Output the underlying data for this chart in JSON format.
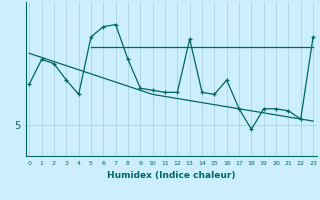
{
  "xlabel": "Humidex (Indice chaleur)",
  "bg_color": "#cceeff",
  "line_color": "#006666",
  "grid_color": "#aad4dd",
  "x_values": [
    0,
    1,
    2,
    3,
    4,
    5,
    6,
    7,
    8,
    9,
    10,
    11,
    12,
    13,
    14,
    15,
    16,
    17,
    18,
    19,
    20,
    21,
    22,
    23
  ],
  "jagged_y": [
    7.0,
    8.2,
    8.0,
    7.2,
    6.5,
    9.3,
    9.8,
    9.9,
    8.2,
    6.8,
    6.7,
    6.6,
    6.6,
    9.2,
    6.6,
    6.5,
    7.2,
    5.8,
    4.8,
    5.8,
    5.8,
    5.7,
    5.3,
    9.3
  ],
  "flat_line_y": [
    8.8,
    8.8,
    8.8,
    8.8,
    8.8,
    8.8,
    8.8,
    8.8,
    8.8,
    8.8,
    8.8,
    8.8,
    8.8,
    8.8,
    8.8,
    8.8,
    8.8,
    8.8,
    8.8,
    8.8,
    8.8,
    8.8,
    8.8,
    8.8
  ],
  "trend_y": [
    8.5,
    8.3,
    8.1,
    7.9,
    7.7,
    7.5,
    7.3,
    7.1,
    6.9,
    6.7,
    6.5,
    6.4,
    6.3,
    6.2,
    6.1,
    6.0,
    5.9,
    5.8,
    5.7,
    5.6,
    5.5,
    5.4,
    5.3,
    5.2
  ],
  "ytick_pos": [
    5
  ],
  "ytick_labels": [
    "5"
  ],
  "ylim": [
    3.5,
    11.0
  ],
  "xlim": [
    -0.3,
    23.3
  ]
}
